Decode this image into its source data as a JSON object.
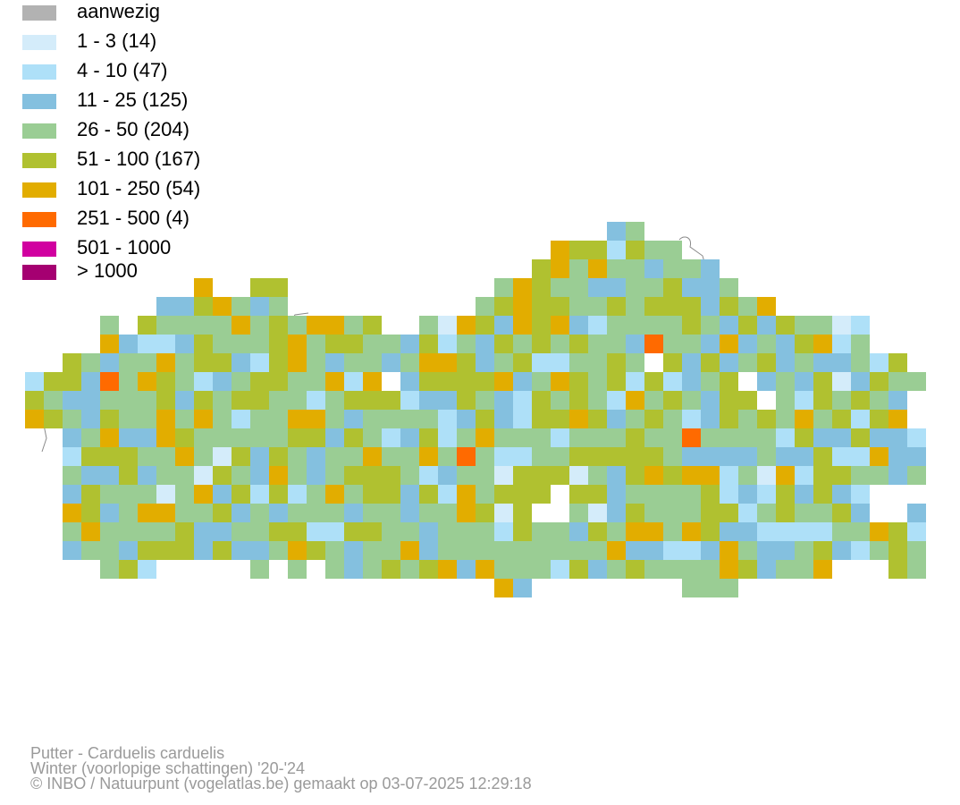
{
  "legend": [
    {
      "label": "aanwezig",
      "color": "#b2b2b2"
    },
    {
      "label": "1 - 3 (14)",
      "color": "#d4ecfa"
    },
    {
      "label": "4 - 10 (47)",
      "color": "#aee0f8"
    },
    {
      "label": "11 - 25 (125)",
      "color": "#84c0df"
    },
    {
      "label": "26 - 50 (204)",
      "color": "#9acd94"
    },
    {
      "label": "51 - 100 (167)",
      "color": "#b0c130"
    },
    {
      "label": "101 - 250 (54)",
      "color": "#e2ad00"
    },
    {
      "label": "251 - 500 (4)",
      "color": "#ff6a00"
    },
    {
      "label": "501 - 1000",
      "color": "#d100a0"
    },
    {
      "label": "> 1000",
      "color": "#a50071"
    }
  ],
  "map": {
    "background_color": "#ffffff",
    "border_color": "#8a8a8a"
  },
  "credits": {
    "species": "Putter - Carduelis carduelis",
    "period": "Winter (voorlopige schattingen) '20-'24",
    "copyright": "© INBO / Natuurpunt (vogelatlas.be) gemaakt op 03-07-2025 12:29:18"
  }
}
